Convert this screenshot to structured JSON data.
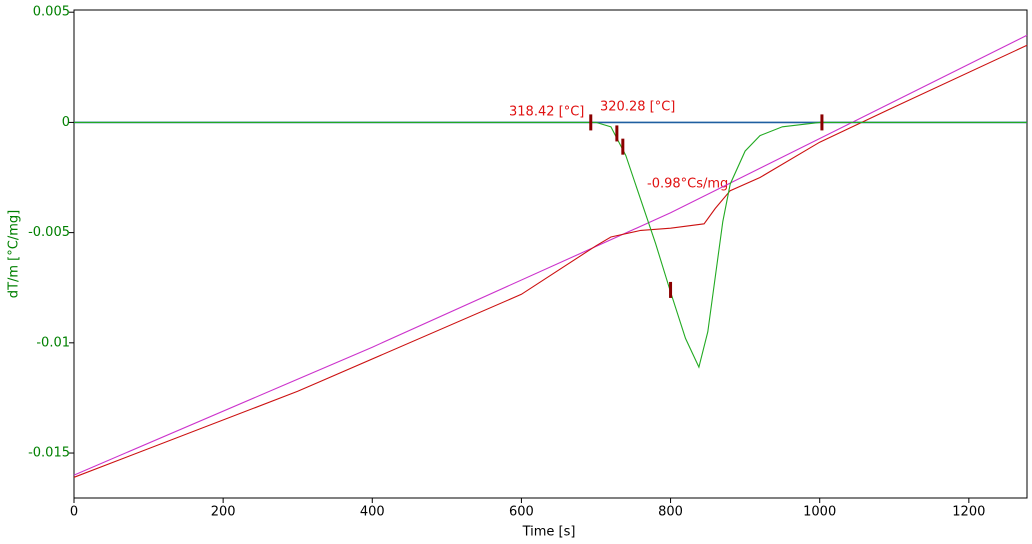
{
  "chart_data": {
    "type": "line",
    "xlabel": "Time [s]",
    "ylabel": "dT/m  [°C/mg]",
    "xlim": [
      0,
      1278
    ],
    "ylim": [
      -0.01704,
      0.0051
    ],
    "xticks": [
      0,
      200,
      400,
      600,
      800,
      1000,
      1200
    ],
    "yticks": [
      0.005,
      0,
      -0.005,
      -0.01,
      -0.015
    ],
    "series": [
      {
        "color": "#1f5fa0",
        "x": [
          0,
          1278
        ],
        "values": [
          0,
          0
        ]
      },
      {
        "color": "#cc33cc",
        "x": [
          0,
          400,
          800,
          1278
        ],
        "values": [
          -0.016,
          -0.0102,
          -0.0041,
          0.00395
        ]
      },
      {
        "color": "#cc1111",
        "x": [
          0,
          300,
          600,
          700,
          720,
          760,
          800,
          845,
          860,
          880,
          920,
          1000,
          1100,
          1278
        ],
        "values": [
          -0.0161,
          -0.0122,
          -0.0078,
          -0.0056,
          -0.0052,
          -0.0049,
          -0.0048,
          -0.0046,
          -0.0039,
          -0.0031,
          -0.0025,
          -0.0009,
          0.0007,
          0.0035
        ]
      },
      {
        "color": "#22aa22",
        "x": [
          0,
          700,
          720,
          740,
          760,
          780,
          800,
          820,
          838,
          850,
          860,
          870,
          880,
          900,
          920,
          950,
          1000,
          1278
        ],
        "values": [
          0,
          0,
          -0.0002,
          -0.0015,
          -0.0035,
          -0.0055,
          -0.0077,
          -0.0098,
          -0.0111,
          -0.0095,
          -0.007,
          -0.0045,
          -0.0028,
          -0.0013,
          -0.0006,
          -0.0002,
          0,
          0
        ]
      }
    ],
    "markers": {
      "color": "#8b0000",
      "x": [
        693,
        728,
        736,
        800,
        1003
      ],
      "y": [
        0,
        -0.0005,
        -0.0011,
        -0.0076,
        0
      ]
    },
    "annotations": [
      "318.42 [°C]",
      "320.28 [°C]",
      "-0.98°Cs/mg"
    ]
  }
}
